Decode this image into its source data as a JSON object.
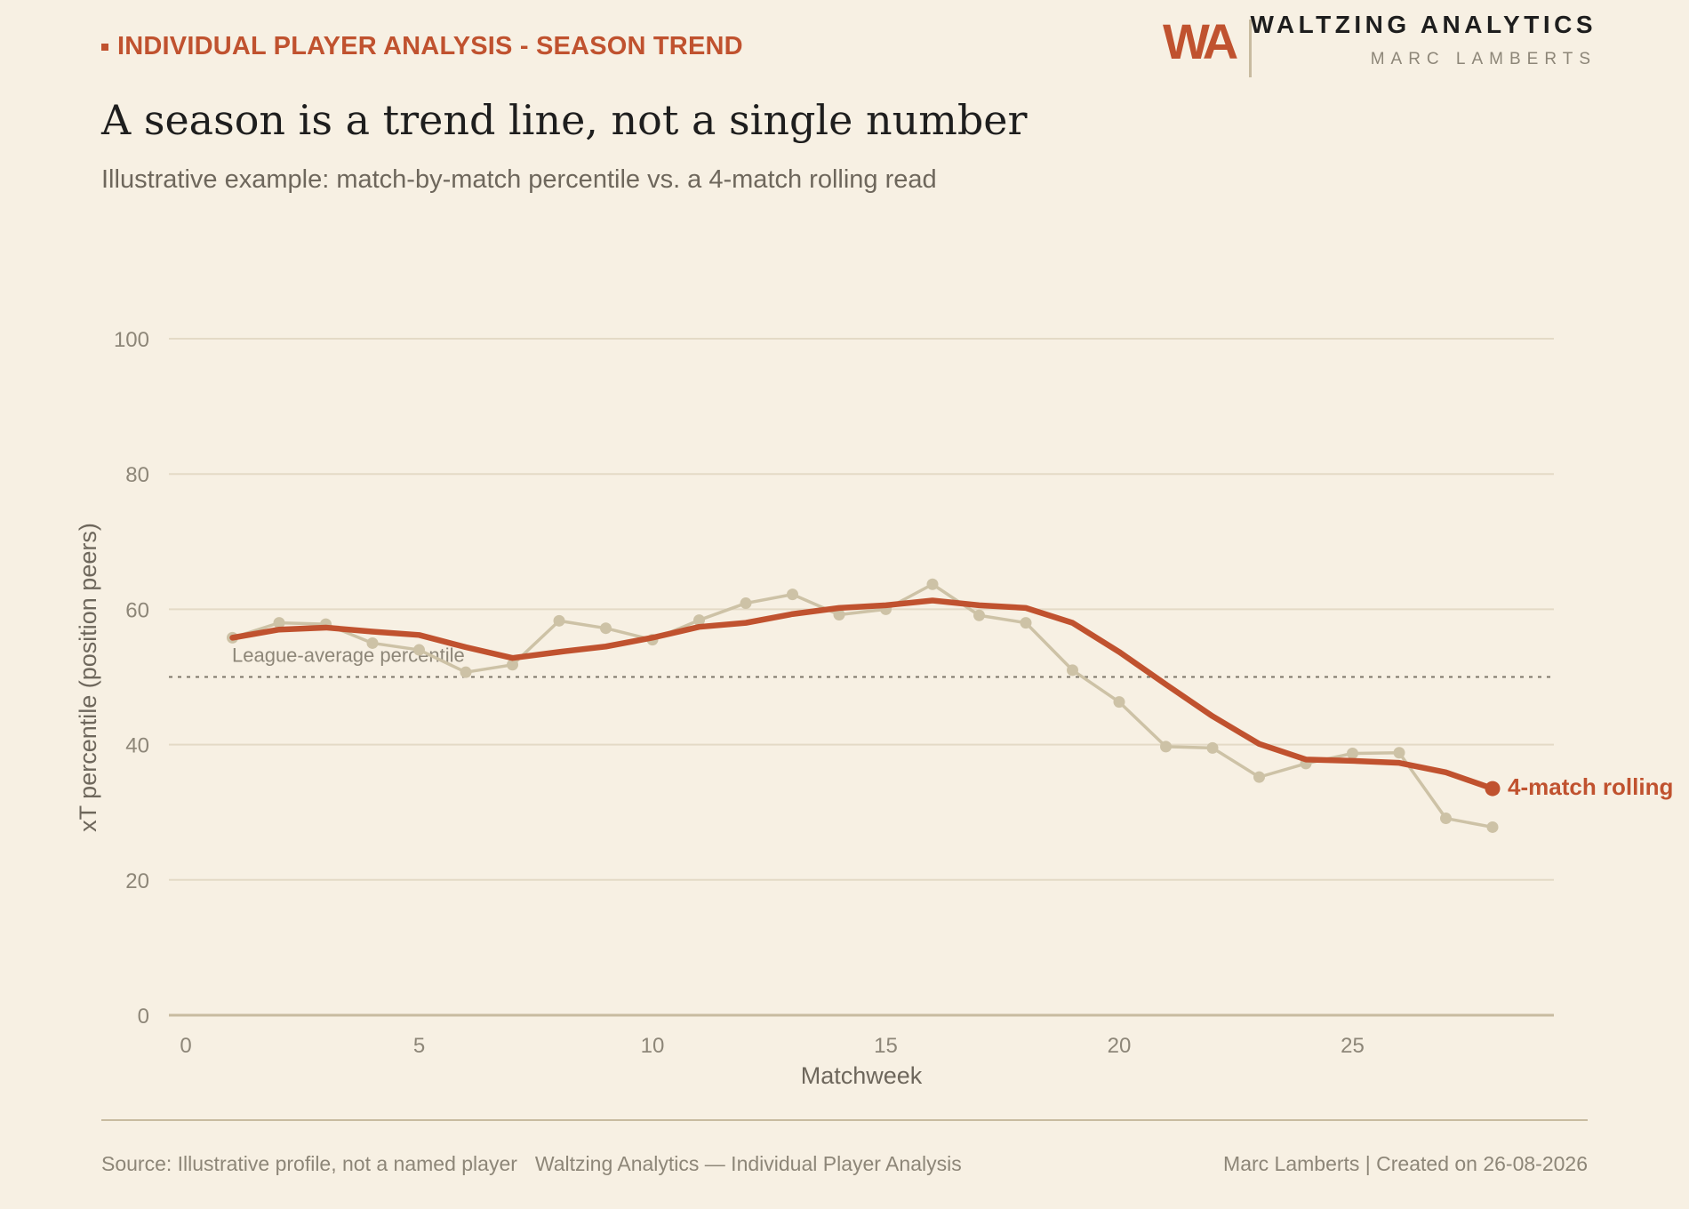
{
  "header": {
    "kicker": "INDIVIDUAL PLAYER ANALYSIS - SEASON TREND",
    "headline": "A season is a trend line, not a single number",
    "subtitle": "Illustrative example: match-by-match percentile vs. a 4-match rolling read"
  },
  "brand": {
    "logo": "WA",
    "name": "WALTZING ANALYTICS",
    "person": "MARC LAMBERTS"
  },
  "footer": {
    "source": "Source: Illustrative profile, not a named player",
    "series": "Waltzing Analytics — Individual Player Analysis",
    "credit": "Marc Lamberts | Created on 26-08-2026"
  },
  "colors": {
    "background": "#f7f0e3",
    "accent": "#c0522f",
    "raw_series": "#cdc2a6",
    "grid": "#e4dac6",
    "reference": "#7d7668"
  },
  "chart_data": {
    "type": "line",
    "xlabel": "Matchweek",
    "ylabel": "xT percentile (position peers)",
    "xlim": [
      0,
      29
    ],
    "ylim": [
      0,
      100
    ],
    "xticks": [
      0,
      5,
      10,
      15,
      20,
      25
    ],
    "yticks": [
      0,
      20,
      40,
      60,
      80,
      100
    ],
    "grid": "horizontal",
    "reference_line": {
      "y": 50,
      "label": "League-average percentile",
      "style": "dotted"
    },
    "x": [
      1,
      2,
      3,
      4,
      5,
      6,
      7,
      8,
      9,
      10,
      11,
      12,
      13,
      14,
      15,
      16,
      17,
      18,
      19,
      20,
      21,
      22,
      23,
      24,
      25,
      26,
      27,
      28
    ],
    "series": [
      {
        "name": "",
        "role": "match-by-match",
        "values": [
          55.8,
          58.0,
          57.8,
          55.0,
          54.0,
          50.7,
          51.8,
          58.3,
          57.2,
          55.5,
          58.4,
          60.9,
          62.2,
          59.2,
          60.0,
          63.7,
          59.1,
          58.0,
          51.0,
          46.3,
          39.7,
          39.5,
          35.2,
          37.2,
          38.7,
          38.8,
          29.1,
          27.8
        ]
      },
      {
        "name": "4-match rolling",
        "role": "rolling",
        "values": [
          55.8,
          57.0,
          57.3,
          56.7,
          56.2,
          54.4,
          52.8,
          53.7,
          54.5,
          55.8,
          57.4,
          58.0,
          59.3,
          60.2,
          60.6,
          61.3,
          60.6,
          60.2,
          58.0,
          53.7,
          48.9,
          44.2,
          40.1,
          37.8,
          37.6,
          37.3,
          35.9,
          33.5
        ]
      }
    ]
  }
}
